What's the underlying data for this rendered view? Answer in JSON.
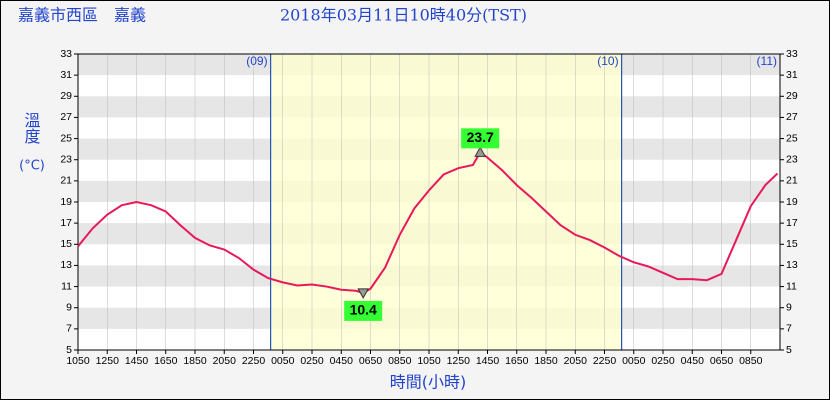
{
  "chart_data": {
    "type": "line",
    "station": "嘉義市西區　嘉義",
    "title": "2018年03月11日10時40分(TST)",
    "ylabel": "溫度",
    "yunit": "(°C)",
    "xlabel": "時間(小時)",
    "xlim": [
      0,
      48
    ],
    "xticks": [
      {
        "value": 0,
        "label": "1050"
      },
      {
        "value": 2,
        "label": "1250"
      },
      {
        "value": 4,
        "label": "1450"
      },
      {
        "value": 6,
        "label": "1650"
      },
      {
        "value": 8,
        "label": "1850"
      },
      {
        "value": 10,
        "label": "2050"
      },
      {
        "value": 12,
        "label": "2250"
      },
      {
        "value": 14,
        "label": "0050"
      },
      {
        "value": 16,
        "label": "0250"
      },
      {
        "value": 18,
        "label": "0450"
      },
      {
        "value": 20,
        "label": "0650"
      },
      {
        "value": 22,
        "label": "0850"
      },
      {
        "value": 24,
        "label": "1050"
      },
      {
        "value": 26,
        "label": "1250"
      },
      {
        "value": 28,
        "label": "1450"
      },
      {
        "value": 30,
        "label": "1650"
      },
      {
        "value": 32,
        "label": "1850"
      },
      {
        "value": 34,
        "label": "2050"
      },
      {
        "value": 36,
        "label": "2250"
      },
      {
        "value": 38,
        "label": "0050"
      },
      {
        "value": 40,
        "label": "0250"
      },
      {
        "value": 42,
        "label": "0450"
      },
      {
        "value": 44,
        "label": "0650"
      },
      {
        "value": 46,
        "label": "0850"
      }
    ],
    "ylim": [
      5,
      33
    ],
    "yticks": [
      5,
      7,
      9,
      11,
      13,
      15,
      17,
      19,
      21,
      23,
      25,
      27,
      29,
      31,
      33
    ],
    "day_markers": [
      {
        "label": "(09)",
        "x": 13.17
      },
      {
        "label": "(10)",
        "x": 37.17
      },
      {
        "label": "(11)",
        "x": 48
      }
    ],
    "highlight_marker": 1,
    "highlight_color": "#ffffcc",
    "x": [
      0,
      1,
      2,
      3,
      4,
      5,
      6,
      7,
      8,
      9,
      10,
      11,
      12,
      13,
      14,
      15,
      16,
      17,
      18,
      19,
      19.5,
      20,
      21,
      22,
      23,
      24,
      25,
      26,
      27,
      27.5,
      28,
      29,
      30,
      31,
      32,
      33,
      34,
      35,
      36,
      37,
      38,
      39,
      40,
      41,
      42,
      43,
      44,
      45,
      46,
      47,
      47.83
    ],
    "series": [
      {
        "name": "溫度",
        "color": "#e8185a",
        "values": [
          14.8,
          16.5,
          17.8,
          18.7,
          19.0,
          18.7,
          18.1,
          16.8,
          15.6,
          14.9,
          14.5,
          13.7,
          12.6,
          11.8,
          11.4,
          11.1,
          11.2,
          11.0,
          10.7,
          10.6,
          10.4,
          10.8,
          12.8,
          15.9,
          18.4,
          20.1,
          21.6,
          22.2,
          22.5,
          23.7,
          23.2,
          22.0,
          20.6,
          19.4,
          18.1,
          16.8,
          15.9,
          15.4,
          14.7,
          13.9,
          13.3,
          12.9,
          12.3,
          11.7,
          11.7,
          11.6,
          12.2,
          15.4,
          18.6,
          20.6,
          21.7
        ]
      }
    ],
    "annotations": [
      {
        "kind": "max",
        "x": 27.5,
        "value": 23.7
      },
      {
        "kind": "min",
        "x": 19.5,
        "value": 10.4
      }
    ]
  }
}
